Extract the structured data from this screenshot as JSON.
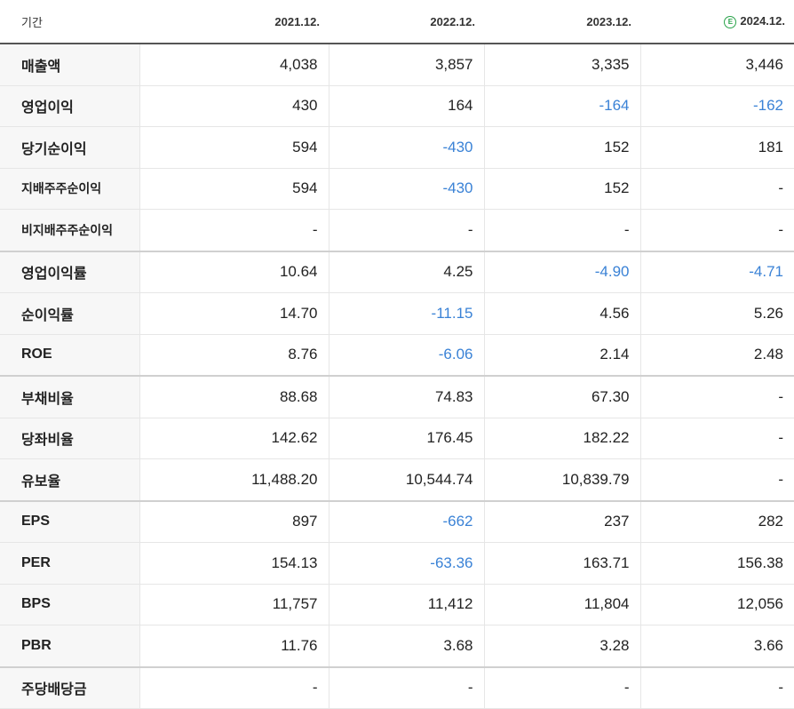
{
  "table": {
    "header_label": "기간",
    "periods": [
      {
        "label": "2021.12.",
        "estimate": false
      },
      {
        "label": "2022.12.",
        "estimate": false
      },
      {
        "label": "2023.12.",
        "estimate": false
      },
      {
        "label": "2024.12.",
        "estimate": true,
        "estimate_glyph": "E"
      }
    ],
    "rows": [
      {
        "label": "매출액",
        "values": [
          "4,038",
          "3,857",
          "3,335",
          "3,446"
        ]
      },
      {
        "label": "영업이익",
        "values": [
          "430",
          "164",
          "-164",
          "-162"
        ]
      },
      {
        "label": "당기순이익",
        "values": [
          "594",
          "-430",
          "152",
          "181"
        ]
      },
      {
        "label": "지배주주순이익",
        "values": [
          "594",
          "-430",
          "152",
          "-"
        ]
      },
      {
        "label": "비지배주주순이익",
        "values": [
          "-",
          "-",
          "-",
          "-"
        ]
      },
      {
        "label": "영업이익률",
        "values": [
          "10.64",
          "4.25",
          "-4.90",
          "-4.71"
        ]
      },
      {
        "label": "순이익률",
        "values": [
          "14.70",
          "-11.15",
          "4.56",
          "5.26"
        ]
      },
      {
        "label": "ROE",
        "values": [
          "8.76",
          "-6.06",
          "2.14",
          "2.48"
        ]
      },
      {
        "label": "부채비율",
        "values": [
          "88.68",
          "74.83",
          "67.30",
          "-"
        ]
      },
      {
        "label": "당좌비율",
        "values": [
          "142.62",
          "176.45",
          "182.22",
          "-"
        ]
      },
      {
        "label": "유보율",
        "values": [
          "11,488.20",
          "10,544.74",
          "10,839.79",
          "-"
        ]
      },
      {
        "label": "EPS",
        "values": [
          "897",
          "-662",
          "237",
          "282"
        ]
      },
      {
        "label": "PER",
        "values": [
          "154.13",
          "-63.36",
          "163.71",
          "156.38"
        ]
      },
      {
        "label": "BPS",
        "values": [
          "11,757",
          "11,412",
          "11,804",
          "12,056"
        ]
      },
      {
        "label": "PBR",
        "values": [
          "11.76",
          "3.68",
          "3.28",
          "3.66"
        ]
      },
      {
        "label": "주당배당금",
        "values": [
          "-",
          "-",
          "-",
          "-"
        ]
      }
    ]
  },
  "colors": {
    "negative": "#3a82d6",
    "estimate_badge": "#2aa34a",
    "text": "#222222"
  }
}
